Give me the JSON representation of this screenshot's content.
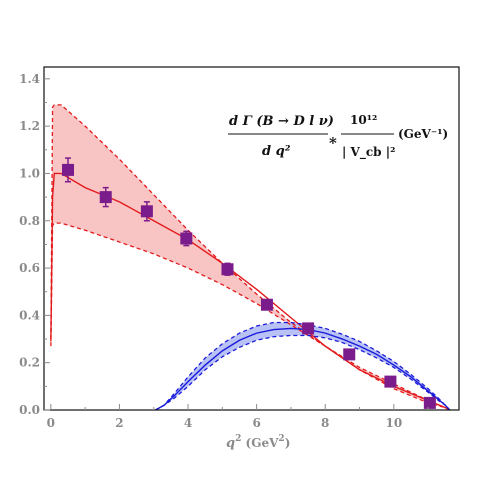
{
  "chart_data": {
    "type": "line",
    "xlabel": "q² (GeV²)",
    "xlabel_main": "q",
    "xlabel_exp": "2",
    "xlabel_unit_open": " (GeV",
    "xlabel_unit_exp": "2",
    "xlabel_unit_close": ")",
    "xlim": [
      -0.2,
      11.9
    ],
    "ylim": [
      0,
      1.45
    ],
    "x_ticks": [
      0,
      2,
      4,
      6,
      8,
      10
    ],
    "x_tick_labels": [
      "0",
      "2",
      "4",
      "6",
      "8",
      "10"
    ],
    "y_ticks": [
      0,
      0.2,
      0.4,
      0.6,
      0.8,
      1.0,
      1.2,
      1.4
    ],
    "y_tick_labels": [
      "0.0",
      "0.2",
      "0.4",
      "0.6",
      "0.8",
      "1.0",
      "1.2",
      "1.4"
    ],
    "grid": false,
    "annotation": {
      "numerator": "d Γ (B → D l ν)",
      "denominator": "d q²",
      "times": "*",
      "factor_numerator": "10¹²",
      "factor_denominator": "| V_cb |²",
      "unit": "(GeV⁻¹)"
    },
    "colors": {
      "red_line": "#e31a1c",
      "red_band": "#f9c4c4",
      "blue_line": "#1a1adb",
      "blue_band": "#b9c2f4",
      "data_marker": "#7b1c8c",
      "error_bar": "#7b1c8c",
      "axis_tick": "#8a8a8a"
    },
    "series": [
      {
        "kind": "band",
        "color": "red",
        "x": [
          0.0,
          0.05,
          0.1,
          0.3,
          1.0,
          2.0,
          3.0,
          4.0,
          5.0,
          6.0,
          7.0,
          8.0,
          9.0,
          10.0,
          11.0,
          11.5,
          11.63
        ],
        "center": [
          0.29,
          0.9,
          1.0,
          1.0,
          0.94,
          0.88,
          0.8,
          0.72,
          0.62,
          0.51,
          0.39,
          0.27,
          0.17,
          0.1,
          0.04,
          0.01,
          0.0
        ],
        "upper": [
          0.3,
          1.28,
          1.29,
          1.29,
          1.2,
          1.06,
          0.91,
          0.76,
          0.62,
          0.49,
          0.37,
          0.27,
          0.18,
          0.11,
          0.04,
          0.01,
          0.0
        ],
        "lower": [
          0.27,
          0.78,
          0.79,
          0.79,
          0.76,
          0.71,
          0.66,
          0.6,
          0.53,
          0.45,
          0.36,
          0.27,
          0.17,
          0.09,
          0.03,
          0.01,
          0.0
        ]
      },
      {
        "kind": "band",
        "color": "blue",
        "x": [
          3.05,
          3.3,
          3.6,
          4.0,
          4.5,
          5.0,
          5.5,
          6.0,
          6.5,
          7.0,
          7.5,
          8.0,
          8.5,
          9.0,
          9.5,
          10.0,
          10.5,
          11.0,
          11.3,
          11.5,
          11.63
        ],
        "center": [
          0.0,
          0.02,
          0.06,
          0.12,
          0.19,
          0.25,
          0.295,
          0.325,
          0.34,
          0.345,
          0.34,
          0.325,
          0.3,
          0.27,
          0.235,
          0.19,
          0.14,
          0.08,
          0.045,
          0.02,
          0.0
        ],
        "upper": [
          0.0,
          0.02,
          0.07,
          0.14,
          0.22,
          0.28,
          0.325,
          0.355,
          0.37,
          0.37,
          0.36,
          0.345,
          0.32,
          0.29,
          0.25,
          0.205,
          0.15,
          0.09,
          0.05,
          0.02,
          0.0
        ],
        "lower": [
          0.0,
          0.02,
          0.05,
          0.1,
          0.17,
          0.225,
          0.265,
          0.295,
          0.31,
          0.315,
          0.315,
          0.305,
          0.285,
          0.255,
          0.22,
          0.18,
          0.13,
          0.075,
          0.04,
          0.02,
          0.0
        ]
      }
    ],
    "data_points": {
      "x": [
        0.5,
        1.6,
        2.8,
        3.95,
        5.15,
        6.3,
        7.5,
        8.7,
        9.9,
        11.05
      ],
      "y": [
        1.015,
        0.9,
        0.84,
        0.725,
        0.595,
        0.445,
        0.345,
        0.235,
        0.12,
        0.03
      ],
      "yerr": [
        0.05,
        0.04,
        0.04,
        0.03,
        0.025,
        0.02,
        0.015,
        0.015,
        0.01,
        0.01
      ]
    }
  }
}
